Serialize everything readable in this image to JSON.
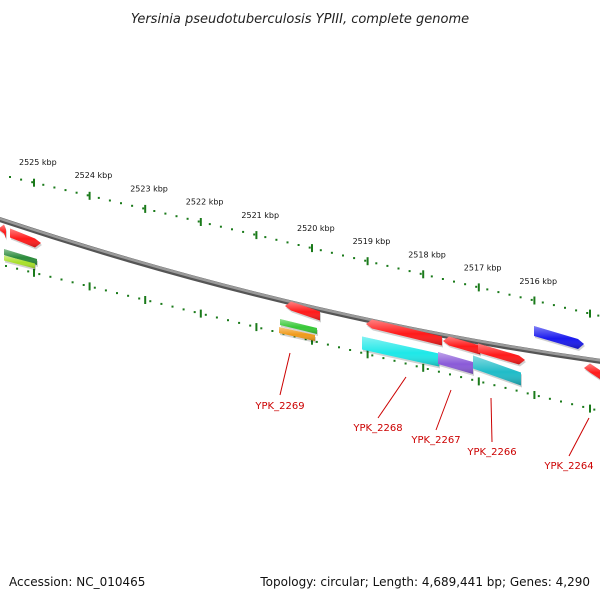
{
  "title": "Yersinia pseudotuberculosis YPIII, complete genome",
  "footer": {
    "accession": "Accession: NC_010465",
    "topology": "Topology: circular; Length: 4,689,441 bp; Genes: 4,290"
  },
  "colors": {
    "backbone": "#888888",
    "tick": "#1a7a1a",
    "label": "#cc0000",
    "gene_red": "#ff1a1a",
    "gene_blue": "#1a1aee",
    "gene_cyan": "#1ee8e8",
    "gene_teal": "#20bcc8",
    "gene_purple": "#8a5ad8",
    "gene_green": "#36c836",
    "gene_orange": "#f09a1a",
    "gene_lime": "#a8e02a",
    "gene_darkgreen": "#2a8a3a"
  },
  "axis": {
    "unit": "kbp",
    "ticks": [
      {
        "label": "2525 kbp"
      },
      {
        "label": "2524 kbp"
      },
      {
        "label": "2523 kbp"
      },
      {
        "label": "2522 kbp"
      },
      {
        "label": "2521 kbp"
      },
      {
        "label": "2520 kbp"
      },
      {
        "label": "2519 kbp"
      },
      {
        "label": "2518 kbp"
      },
      {
        "label": "2517 kbp"
      },
      {
        "label": "2516 kbp"
      }
    ]
  },
  "gene_labels": [
    "YPK_2269",
    "YPK_2268",
    "YPK_2267",
    "YPK_2266",
    "YPK_2264"
  ]
}
